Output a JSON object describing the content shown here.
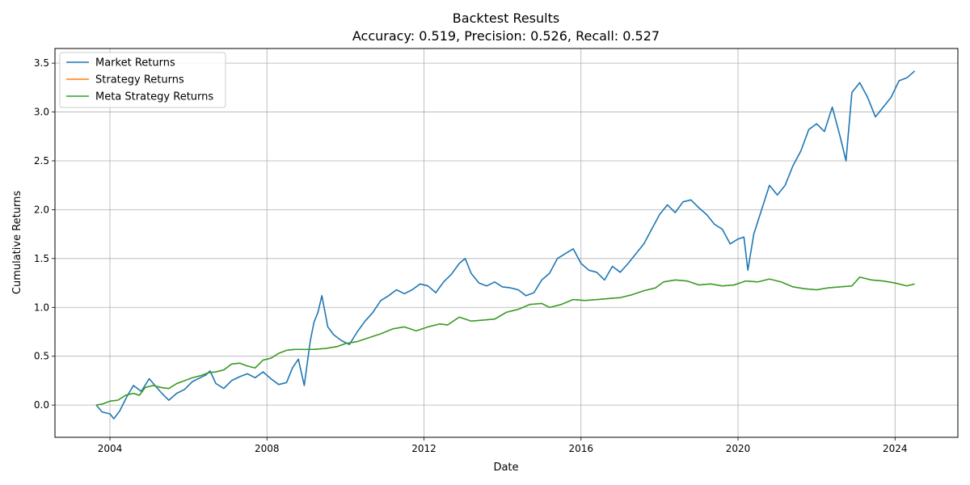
{
  "chart_data": {
    "type": "line",
    "title": "Backtest Results",
    "subtitle": "Accuracy: 0.519, Precision: 0.526, Recall: 0.527",
    "xlabel": "Date",
    "ylabel": "Cumulative Returns",
    "xlim": [
      2002.6,
      2025.6
    ],
    "ylim": [
      -0.33,
      3.65
    ],
    "x_ticks": [
      2004,
      2008,
      2012,
      2016,
      2020,
      2024
    ],
    "x_tick_labels": [
      "2004",
      "2008",
      "2012",
      "2016",
      "2020",
      "2024"
    ],
    "y_ticks": [
      0.0,
      0.5,
      1.0,
      1.5,
      2.0,
      2.5,
      3.0,
      3.5
    ],
    "y_tick_labels": [
      "0.0",
      "0.5",
      "1.0",
      "1.5",
      "2.0",
      "2.5",
      "3.0",
      "3.5"
    ],
    "grid": true,
    "legend_position": "top-left",
    "series": [
      {
        "name": "Market Returns",
        "color": "#1f77b4",
        "x": [
          2003.65,
          2003.8,
          2004.0,
          2004.1,
          2004.25,
          2004.45,
          2004.6,
          2004.8,
          2005.0,
          2005.15,
          2005.3,
          2005.5,
          2005.7,
          2005.9,
          2006.1,
          2006.3,
          2006.45,
          2006.55,
          2006.7,
          2006.9,
          2007.1,
          2007.3,
          2007.5,
          2007.7,
          2007.9,
          2008.1,
          2008.3,
          2008.5,
          2008.65,
          2008.8,
          2008.95,
          2009.1,
          2009.2,
          2009.3,
          2009.4,
          2009.55,
          2009.7,
          2009.9,
          2010.1,
          2010.3,
          2010.5,
          2010.7,
          2010.9,
          2011.1,
          2011.3,
          2011.5,
          2011.7,
          2011.9,
          2012.1,
          2012.3,
          2012.5,
          2012.7,
          2012.9,
          2013.05,
          2013.2,
          2013.4,
          2013.6,
          2013.8,
          2014.0,
          2014.2,
          2014.4,
          2014.6,
          2014.8,
          2015.0,
          2015.2,
          2015.4,
          2015.6,
          2015.8,
          2016.0,
          2016.2,
          2016.4,
          2016.6,
          2016.8,
          2017.0,
          2017.2,
          2017.4,
          2017.6,
          2017.8,
          2018.0,
          2018.2,
          2018.4,
          2018.6,
          2018.8,
          2019.0,
          2019.2,
          2019.4,
          2019.6,
          2019.8,
          2020.0,
          2020.15,
          2020.25,
          2020.4,
          2020.6,
          2020.8,
          2021.0,
          2021.2,
          2021.4,
          2021.6,
          2021.8,
          2022.0,
          2022.2,
          2022.4,
          2022.6,
          2022.75,
          2022.9,
          2023.1,
          2023.3,
          2023.5,
          2023.7,
          2023.9,
          2024.1,
          2024.3,
          2024.5
        ],
        "y": [
          0.0,
          -0.07,
          -0.09,
          -0.14,
          -0.06,
          0.1,
          0.2,
          0.14,
          0.27,
          0.2,
          0.13,
          0.05,
          0.12,
          0.16,
          0.24,
          0.28,
          0.31,
          0.35,
          0.22,
          0.17,
          0.25,
          0.29,
          0.32,
          0.28,
          0.34,
          0.27,
          0.21,
          0.23,
          0.38,
          0.47,
          0.2,
          0.65,
          0.85,
          0.95,
          1.12,
          0.8,
          0.72,
          0.66,
          0.62,
          0.75,
          0.86,
          0.95,
          1.07,
          1.12,
          1.18,
          1.14,
          1.18,
          1.24,
          1.22,
          1.15,
          1.26,
          1.34,
          1.45,
          1.5,
          1.35,
          1.25,
          1.22,
          1.26,
          1.21,
          1.2,
          1.18,
          1.12,
          1.15,
          1.28,
          1.35,
          1.5,
          1.55,
          1.6,
          1.45,
          1.38,
          1.36,
          1.28,
          1.42,
          1.36,
          1.45,
          1.55,
          1.65,
          1.8,
          1.95,
          2.05,
          1.97,
          2.08,
          2.1,
          2.02,
          1.95,
          1.85,
          1.8,
          1.65,
          1.7,
          1.72,
          1.38,
          1.75,
          2.0,
          2.25,
          2.15,
          2.25,
          2.45,
          2.6,
          2.82,
          2.88,
          2.8,
          3.05,
          2.75,
          2.5,
          3.2,
          3.3,
          3.15,
          2.95,
          3.05,
          3.15,
          3.32,
          3.35,
          3.42
        ]
      },
      {
        "name": "Strategy Returns",
        "color": "#ff7f0e",
        "x": [
          2003.65,
          2003.8,
          2004.0,
          2004.2,
          2004.4,
          2004.6,
          2004.75,
          2004.9,
          2005.1,
          2005.3,
          2005.5,
          2005.7,
          2005.9,
          2006.1,
          2006.3,
          2006.5,
          2006.7,
          2006.9,
          2007.1,
          2007.3,
          2007.5,
          2007.7,
          2007.9,
          2008.1,
          2008.3,
          2008.5,
          2008.7,
          2008.9,
          2009.2,
          2009.5,
          2009.8,
          2010.0,
          2010.3,
          2010.6,
          2010.9,
          2011.2,
          2011.5,
          2011.8,
          2012.1,
          2012.4,
          2012.6,
          2012.9,
          2013.2,
          2013.5,
          2013.8,
          2014.1,
          2014.4,
          2014.7,
          2015.0,
          2015.2,
          2015.5,
          2015.8,
          2016.1,
          2016.4,
          2016.7,
          2017.0,
          2017.3,
          2017.6,
          2017.9,
          2018.1,
          2018.4,
          2018.7,
          2019.0,
          2019.3,
          2019.6,
          2019.9,
          2020.2,
          2020.5,
          2020.8,
          2021.1,
          2021.4,
          2021.7,
          2022.0,
          2022.3,
          2022.6,
          2022.9,
          2023.1,
          2023.4,
          2023.7,
          2024.0,
          2024.3,
          2024.5
        ],
        "y": [
          0.0,
          0.01,
          0.04,
          0.05,
          0.1,
          0.12,
          0.1,
          0.18,
          0.2,
          0.18,
          0.17,
          0.22,
          0.25,
          0.28,
          0.3,
          0.33,
          0.34,
          0.36,
          0.42,
          0.43,
          0.4,
          0.38,
          0.46,
          0.48,
          0.53,
          0.56,
          0.57,
          0.57,
          0.57,
          0.58,
          0.6,
          0.63,
          0.65,
          0.69,
          0.73,
          0.78,
          0.8,
          0.76,
          0.8,
          0.83,
          0.82,
          0.9,
          0.86,
          0.87,
          0.88,
          0.95,
          0.98,
          1.03,
          1.04,
          1.0,
          1.03,
          1.08,
          1.07,
          1.08,
          1.09,
          1.1,
          1.13,
          1.17,
          1.2,
          1.26,
          1.28,
          1.27,
          1.23,
          1.24,
          1.22,
          1.23,
          1.27,
          1.26,
          1.29,
          1.26,
          1.21,
          1.19,
          1.18,
          1.2,
          1.21,
          1.22,
          1.31,
          1.28,
          1.27,
          1.25,
          1.22,
          1.24
        ]
      },
      {
        "name": "Meta Strategy Returns",
        "color": "#2ca02c",
        "x": [
          2003.65,
          2003.8,
          2004.0,
          2004.2,
          2004.4,
          2004.6,
          2004.75,
          2004.9,
          2005.1,
          2005.3,
          2005.5,
          2005.7,
          2005.9,
          2006.1,
          2006.3,
          2006.5,
          2006.7,
          2006.9,
          2007.1,
          2007.3,
          2007.5,
          2007.7,
          2007.9,
          2008.1,
          2008.3,
          2008.5,
          2008.7,
          2008.9,
          2009.2,
          2009.5,
          2009.8,
          2010.0,
          2010.3,
          2010.6,
          2010.9,
          2011.2,
          2011.5,
          2011.8,
          2012.1,
          2012.4,
          2012.6,
          2012.9,
          2013.2,
          2013.5,
          2013.8,
          2014.1,
          2014.4,
          2014.7,
          2015.0,
          2015.2,
          2015.5,
          2015.8,
          2016.1,
          2016.4,
          2016.7,
          2017.0,
          2017.3,
          2017.6,
          2017.9,
          2018.1,
          2018.4,
          2018.7,
          2019.0,
          2019.3,
          2019.6,
          2019.9,
          2020.2,
          2020.5,
          2020.8,
          2021.1,
          2021.4,
          2021.7,
          2022.0,
          2022.3,
          2022.6,
          2022.9,
          2023.1,
          2023.4,
          2023.7,
          2024.0,
          2024.3,
          2024.5
        ],
        "y": [
          0.0,
          0.01,
          0.04,
          0.05,
          0.1,
          0.12,
          0.1,
          0.18,
          0.2,
          0.18,
          0.17,
          0.22,
          0.25,
          0.28,
          0.3,
          0.33,
          0.34,
          0.36,
          0.42,
          0.43,
          0.4,
          0.38,
          0.46,
          0.48,
          0.53,
          0.56,
          0.57,
          0.57,
          0.57,
          0.58,
          0.6,
          0.63,
          0.65,
          0.69,
          0.73,
          0.78,
          0.8,
          0.76,
          0.8,
          0.83,
          0.82,
          0.9,
          0.86,
          0.87,
          0.88,
          0.95,
          0.98,
          1.03,
          1.04,
          1.0,
          1.03,
          1.08,
          1.07,
          1.08,
          1.09,
          1.1,
          1.13,
          1.17,
          1.2,
          1.26,
          1.28,
          1.27,
          1.23,
          1.24,
          1.22,
          1.23,
          1.27,
          1.26,
          1.29,
          1.26,
          1.21,
          1.19,
          1.18,
          1.2,
          1.21,
          1.22,
          1.31,
          1.28,
          1.27,
          1.25,
          1.22,
          1.24
        ]
      }
    ]
  }
}
